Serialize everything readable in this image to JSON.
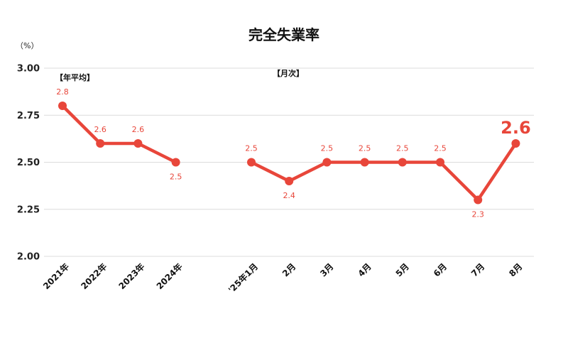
{
  "chart_data": {
    "type": "line",
    "title": "完全失業率",
    "unit_label": "（%）",
    "ylim": [
      2.0,
      3.0
    ],
    "yticks": [
      "2.00",
      "2.25",
      "2.50",
      "2.75",
      "3.00"
    ],
    "ytick_values": [
      2.0,
      2.25,
      2.5,
      2.75,
      3.0
    ],
    "grid": true,
    "legend": "none",
    "line_color": "#e8463a",
    "section_labels": [
      "【年平均】",
      "【月次】"
    ],
    "groups": [
      {
        "section": "【年平均】",
        "categories": [
          "2021年",
          "2022年",
          "2023年",
          "2024年"
        ],
        "values": [
          2.8,
          2.6,
          2.6,
          2.5
        ],
        "labels": [
          "2.8",
          "2.6",
          "2.6",
          "2.5"
        ]
      },
      {
        "section": "【月次】",
        "categories": [
          "'25年1月",
          "2月",
          "3月",
          "4月",
          "5月",
          "6月",
          "7月",
          "8月"
        ],
        "values": [
          2.5,
          2.4,
          2.5,
          2.5,
          2.5,
          2.5,
          2.3,
          2.6
        ],
        "labels": [
          "2.5",
          "2.4",
          "2.5",
          "2.5",
          "2.5",
          "2.5",
          "2.3",
          "2.6"
        ],
        "highlight_index": 7
      }
    ]
  }
}
